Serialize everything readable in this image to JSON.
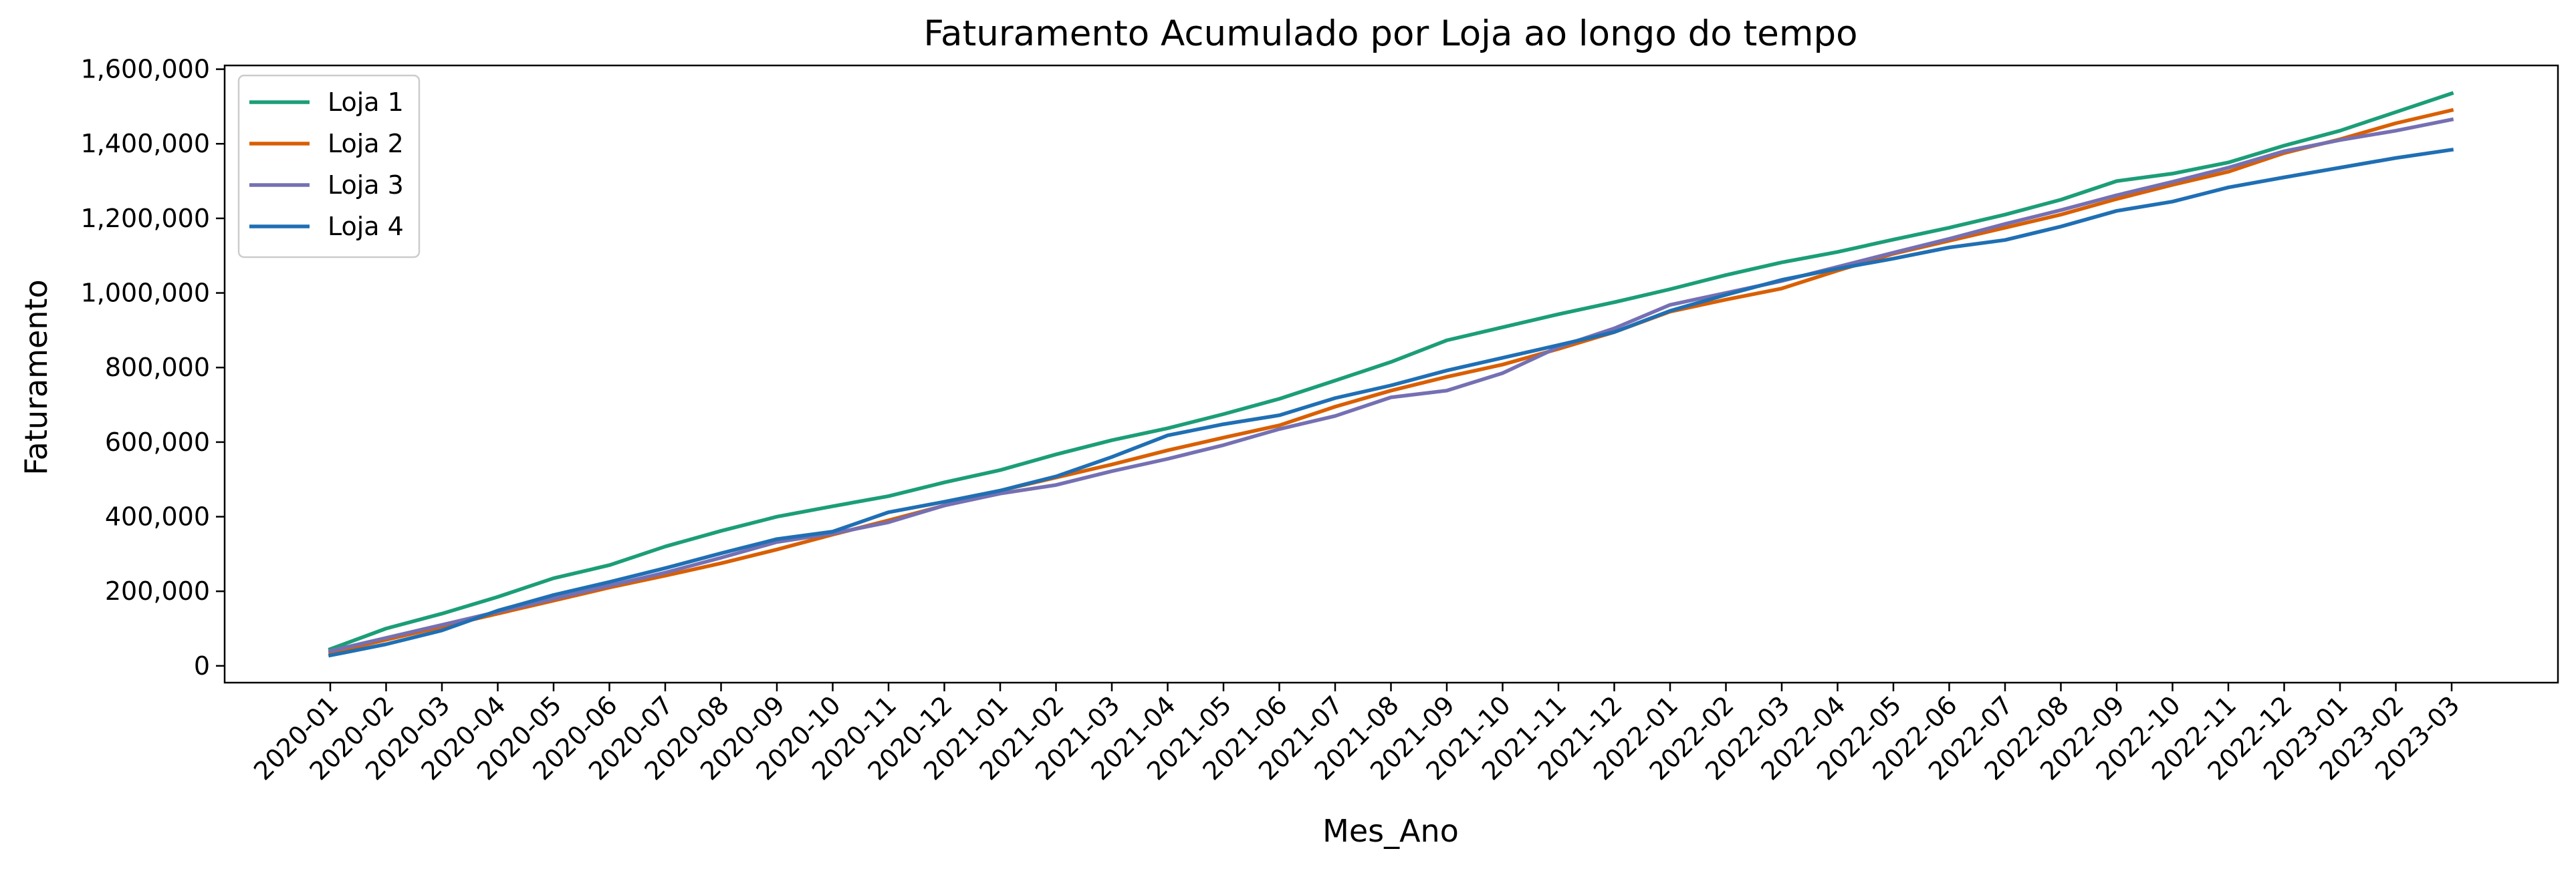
{
  "chart_data": {
    "type": "line",
    "title": "Faturamento Acumulado por Loja ao longo do tempo",
    "xlabel": "Mes_Ano",
    "ylabel": "Faturamento",
    "ylim": [
      -45000,
      1610000
    ],
    "yticks": [
      0,
      200000,
      400000,
      600000,
      800000,
      1000000,
      1200000,
      1400000,
      1600000
    ],
    "ytick_labels": [
      "0",
      "200,000",
      "400,000",
      "600,000",
      "800,000",
      "1,000,000",
      "1,200,000",
      "1,400,000",
      "1,600,000"
    ],
    "grid": false,
    "legend_position": "top-left",
    "categories": [
      "2020-01",
      "2020-02",
      "2020-03",
      "2020-04",
      "2020-05",
      "2020-06",
      "2020-07",
      "2020-08",
      "2020-09",
      "2020-10",
      "2020-11",
      "2020-12",
      "2021-01",
      "2021-02",
      "2021-03",
      "2021-04",
      "2021-05",
      "2021-06",
      "2021-07",
      "2021-08",
      "2021-09",
      "2021-10",
      "2021-11",
      "2021-12",
      "2022-01",
      "2022-02",
      "2022-03",
      "2022-04",
      "2022-05",
      "2022-06",
      "2022-07",
      "2022-08",
      "2022-09",
      "2022-10",
      "2022-11",
      "2022-12",
      "2023-01",
      "2023-02",
      "2023-03"
    ],
    "series": [
      {
        "name": "Loja 1",
        "color": "#1b9e77",
        "values": [
          45000,
          100000,
          140000,
          185000,
          235000,
          270000,
          320000,
          362000,
          400000,
          428000,
          455000,
          492000,
          525000,
          567000,
          605000,
          637000,
          675000,
          716000,
          765000,
          815000,
          873000,
          908000,
          943000,
          975000,
          1010000,
          1048000,
          1082000,
          1110000,
          1143000,
          1175000,
          1210000,
          1250000,
          1300000,
          1320000,
          1350000,
          1395000,
          1435000,
          1485000,
          1535000
        ]
      },
      {
        "name": "Loja 2",
        "color": "#d95f02",
        "values": [
          35000,
          70000,
          105000,
          140000,
          175000,
          210000,
          242000,
          275000,
          312000,
          352000,
          390000,
          430000,
          470000,
          505000,
          540000,
          578000,
          612000,
          645000,
          695000,
          738000,
          775000,
          808000,
          850000,
          895000,
          950000,
          982000,
          1012000,
          1060000,
          1105000,
          1140000,
          1175000,
          1210000,
          1252000,
          1290000,
          1325000,
          1375000,
          1412000,
          1455000,
          1490000
        ]
      },
      {
        "name": "Loja 3",
        "color": "#7570b3",
        "values": [
          40000,
          75000,
          110000,
          145000,
          180000,
          215000,
          250000,
          290000,
          332000,
          355000,
          385000,
          430000,
          462000,
          485000,
          522000,
          555000,
          592000,
          635000,
          670000,
          720000,
          738000,
          785000,
          855000,
          905000,
          968000,
          1000000,
          1032000,
          1070000,
          1108000,
          1145000,
          1185000,
          1222000,
          1262000,
          1298000,
          1336000,
          1380000,
          1410000,
          1435000,
          1465000
        ]
      },
      {
        "name": "Loja 4",
        "color": "#1f6fb4",
        "values": [
          28000,
          58000,
          95000,
          148000,
          190000,
          225000,
          262000,
          302000,
          340000,
          360000,
          412000,
          440000,
          470000,
          508000,
          560000,
          618000,
          648000,
          672000,
          718000,
          752000,
          792000,
          826000,
          860000,
          895000,
          952000,
          995000,
          1035000,
          1065000,
          1092000,
          1122000,
          1142000,
          1178000,
          1220000,
          1245000,
          1283000,
          1310000,
          1336000,
          1362000,
          1384000
        ]
      }
    ]
  }
}
